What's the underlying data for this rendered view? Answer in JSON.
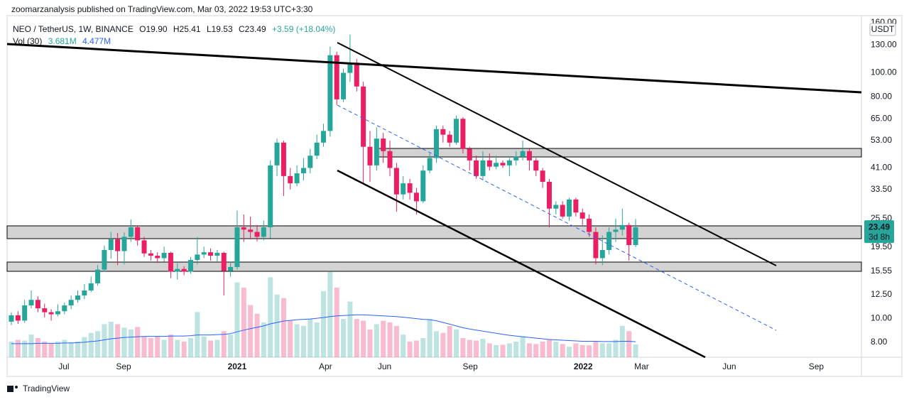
{
  "header": {
    "publisher": "zoomarzanalysis published on TradingView.com, Mar 03, 2022 19:53 UTC+3:30",
    "brand": "TradingView"
  },
  "chart_data": {
    "type": "candlestick",
    "title": "NEO / TetherUS, 1W, BINANCE",
    "ohlc_legend": [
      "O19.90",
      "H25.41",
      "L19.53",
      "C23.49"
    ],
    "change": "+3.59 (+18.04%)",
    "currency": "USDT",
    "countdown": "3d 8h",
    "up_color": "#26a69a",
    "down_color": "#e91e63",
    "ylog": true,
    "grid": false,
    "ylim": [
      6.95,
      171
    ],
    "yticks": [
      {
        "value": 160,
        "label": "160.00"
      },
      {
        "value": 130,
        "label": "130.00"
      },
      {
        "value": 100,
        "label": "100.00"
      },
      {
        "value": 80,
        "label": "80.00"
      },
      {
        "value": 65,
        "label": "65.00"
      },
      {
        "value": 53,
        "label": "53.00"
      },
      {
        "value": 41,
        "label": "41.00"
      },
      {
        "value": 33.5,
        "label": "33.50"
      },
      {
        "value": 25.5,
        "label": "25.50"
      },
      {
        "value": 19.5,
        "label": "19.50"
      },
      {
        "value": 15.55,
        "label": "15.55"
      },
      {
        "value": 12.5,
        "label": "12.50"
      },
      {
        "value": 10,
        "label": "10.00"
      },
      {
        "value": 8,
        "label": "8.00"
      }
    ],
    "xlim": [
      -0.64,
      128.0
    ],
    "xticks": [
      {
        "value": 7.9,
        "label": "Jul"
      },
      {
        "value": 16.9,
        "label": "Sep"
      },
      {
        "value": 34.0,
        "label": "2021"
      },
      {
        "value": 47.3,
        "label": "Apr"
      },
      {
        "value": 56.2,
        "label": "Jun"
      },
      {
        "value": 69.1,
        "label": "Sep"
      },
      {
        "value": 86.1,
        "label": "2022"
      },
      {
        "value": 94.9,
        "label": "Mar"
      },
      {
        "value": 108.1,
        "label": "Jun"
      },
      {
        "value": 121.2,
        "label": "Sep"
      }
    ],
    "open": [
      9.7,
      10.3,
      9.8,
      11.3,
      11.9,
      11.0,
      10.6,
      10.4,
      10.7,
      11.3,
      11.9,
      12.4,
      13,
      13.9,
      15.8,
      19.0,
      21,
      18.8,
      21.5,
      23.5,
      20.8,
      18.4,
      18,
      17.6,
      18.5,
      15.5,
      15.9,
      15.5,
      17.3,
      18.2,
      18.6,
      18,
      18.5,
      15.6,
      16.2,
      23.5,
      23,
      22.5,
      21.5,
      23.5,
      42,
      52,
      38,
      35.5,
      39,
      41,
      46,
      52,
      58,
      118,
      78,
      100,
      110,
      88,
      50,
      42,
      54,
      48,
      41,
      32,
      35.5,
      32.5,
      30,
      40,
      45,
      59,
      56,
      52,
      65,
      49,
      44,
      38,
      44,
      41.5,
      43,
      42,
      44,
      45.5,
      48,
      44,
      40,
      36,
      28,
      29,
      26,
      30.5,
      27,
      25.5,
      22.5,
      17.6,
      19.0,
      22.5,
      23,
      24,
      19.9
    ],
    "high": [
      10.6,
      10.7,
      11.9,
      13,
      12.3,
      11.5,
      10.9,
      11.4,
      11.6,
      12.4,
      13,
      13.8,
      14.8,
      16.5,
      19.8,
      22.5,
      22.3,
      22.4,
      25.3,
      23.8,
      21.5,
      19,
      18.6,
      19.6,
      18.7,
      16.8,
      16.3,
      17.8,
      21.5,
      19.6,
      19.3,
      19,
      18.7,
      17,
      27.5,
      26.5,
      26,
      24,
      25,
      44,
      54,
      53,
      41,
      42,
      45,
      49,
      56,
      62,
      128,
      122,
      104,
      143,
      114,
      92,
      58,
      60,
      57,
      53,
      43,
      38,
      37,
      34,
      42,
      47,
      61,
      61,
      58,
      67,
      66,
      50,
      46,
      48,
      47,
      46,
      44,
      45,
      48,
      53,
      49,
      45,
      41,
      37,
      30,
      30,
      31,
      31,
      28,
      26.5,
      23.5,
      21.8,
      23.5,
      25.5,
      28,
      24.5,
      25.41
    ],
    "low": [
      9.4,
      9.5,
      9.6,
      11,
      10.6,
      10.1,
      9.8,
      10.2,
      10.4,
      10.9,
      11.6,
      12,
      12.8,
      13.6,
      15.5,
      17.5,
      16.5,
      16.6,
      20.5,
      19.8,
      17.8,
      17.2,
      16.8,
      17.0,
      14.6,
      14.4,
      15.0,
      15.2,
      16.6,
      17.6,
      17.2,
      17.1,
      12.4,
      14.8,
      15.8,
      20.5,
      21,
      20.6,
      20.8,
      21.2,
      38,
      31.5,
      33.5,
      34.5,
      36.5,
      39,
      44.5,
      50,
      55,
      74,
      76,
      92,
      84,
      35.5,
      36,
      40,
      43,
      38,
      27.2,
      30.5,
      30.5,
      26.5,
      29.5,
      39,
      43,
      52,
      50,
      51,
      47,
      40,
      37,
      36.5,
      40,
      40.5,
      41,
      38,
      42,
      44,
      40,
      38,
      34,
      23.5,
      26.5,
      25.5,
      25,
      26,
      24,
      21.5,
      16.6,
      16.5,
      18.2,
      20.5,
      21.8,
      17.2,
      19.53
    ],
    "close": [
      10.3,
      9.8,
      11.3,
      11.9,
      11.0,
      10.6,
      10.4,
      10.7,
      11.3,
      11.9,
      12.4,
      13.0,
      13.9,
      15.8,
      19.0,
      21.0,
      18.8,
      21.5,
      23.5,
      20.8,
      18.4,
      18.0,
      17.6,
      18.5,
      15.5,
      15.9,
      15.5,
      17.3,
      18.2,
      18.6,
      18.0,
      18.5,
      15.6,
      16.2,
      23.5,
      23.0,
      22.5,
      21.5,
      23.5,
      42,
      52,
      38,
      35.5,
      39,
      41,
      46,
      52,
      58,
      118,
      78,
      100,
      110,
      88,
      50,
      42,
      54,
      48,
      41,
      32,
      35.5,
      32.5,
      30,
      40,
      45,
      59,
      56,
      52,
      65,
      49,
      44,
      38,
      44,
      41.5,
      43,
      42,
      44,
      45.5,
      48,
      44,
      40,
      36,
      28,
      29,
      26,
      30.5,
      27,
      25.5,
      22.5,
      17.6,
      19.0,
      22.5,
      23.0,
      24,
      19.9,
      23.49
    ],
    "vlim": [
      0,
      30
    ],
    "volume": {
      "values": [
        4.5,
        5.0,
        4.8,
        6.5,
        5.5,
        4.5,
        4.0,
        4.5,
        5.0,
        4.3,
        4.5,
        5.8,
        7.0,
        7.5,
        9.5,
        10.2,
        9.5,
        8.5,
        8.0,
        8.7,
        6.0,
        5.5,
        6.0,
        5.0,
        6.5,
        5.0,
        4.5,
        5.5,
        13.0,
        6.0,
        4.8,
        5.0,
        7.5,
        6.5,
        21.5,
        20.0,
        15.0,
        12.5,
        10.0,
        23.0,
        18.0,
        17.0,
        10.5,
        9.5,
        9.0,
        11.0,
        10.0,
        19.0,
        24.5,
        20.0,
        11.0,
        16.0,
        11.0,
        10.5,
        8.0,
        9.5,
        10.5,
        10.0,
        9.0,
        6.5,
        4.5,
        4.8,
        5.5,
        11.0,
        7.5,
        7.0,
        9.0,
        8.0,
        5.5,
        5.0,
        4.8,
        5.3,
        4.0,
        3.5,
        3.6,
        4.0,
        4.5,
        6.0,
        4.0,
        3.8,
        4.5,
        5.0,
        4.5,
        3.8,
        3.0,
        4.0,
        3.5,
        3.4,
        4.5,
        4.0,
        4.0,
        5.0,
        9.0,
        7.5,
        3.681
      ],
      "last_label": "3.681M"
    },
    "volume_ma": {
      "name": "Vol (30)",
      "color": "#2962ff",
      "values": [
        3.9,
        3.9,
        3.9,
        3.9,
        4.0,
        4.0,
        4.0,
        4.0,
        4.1,
        4.1,
        4.2,
        4.3,
        4.5,
        4.7,
        5.0,
        5.3,
        5.5,
        5.7,
        5.8,
        5.9,
        6.0,
        6.0,
        6.0,
        6.0,
        6.1,
        6.1,
        6.1,
        6.2,
        6.4,
        6.4,
        6.4,
        6.5,
        6.6,
        6.8,
        7.3,
        7.8,
        8.2,
        8.6,
        9.0,
        9.6,
        10.0,
        10.4,
        10.6,
        10.8,
        10.9,
        11.0,
        11.2,
        11.4,
        11.7,
        11.9,
        12.0,
        12.1,
        12.2,
        12.2,
        12.1,
        12.0,
        11.9,
        11.8,
        11.7,
        11.5,
        11.3,
        11.1,
        10.9,
        10.8,
        10.5,
        10.0,
        9.5,
        9.0,
        8.5,
        8.1,
        7.8,
        7.5,
        7.2,
        6.9,
        6.6,
        6.3,
        6.1,
        5.9,
        5.7,
        5.5,
        5.3,
        5.1,
        5.0,
        4.9,
        4.8,
        4.7,
        4.6,
        4.6,
        4.6,
        4.5,
        4.5,
        4.5,
        4.6,
        4.6,
        4.477
      ],
      "last_label": "4.477M"
    }
  }
}
